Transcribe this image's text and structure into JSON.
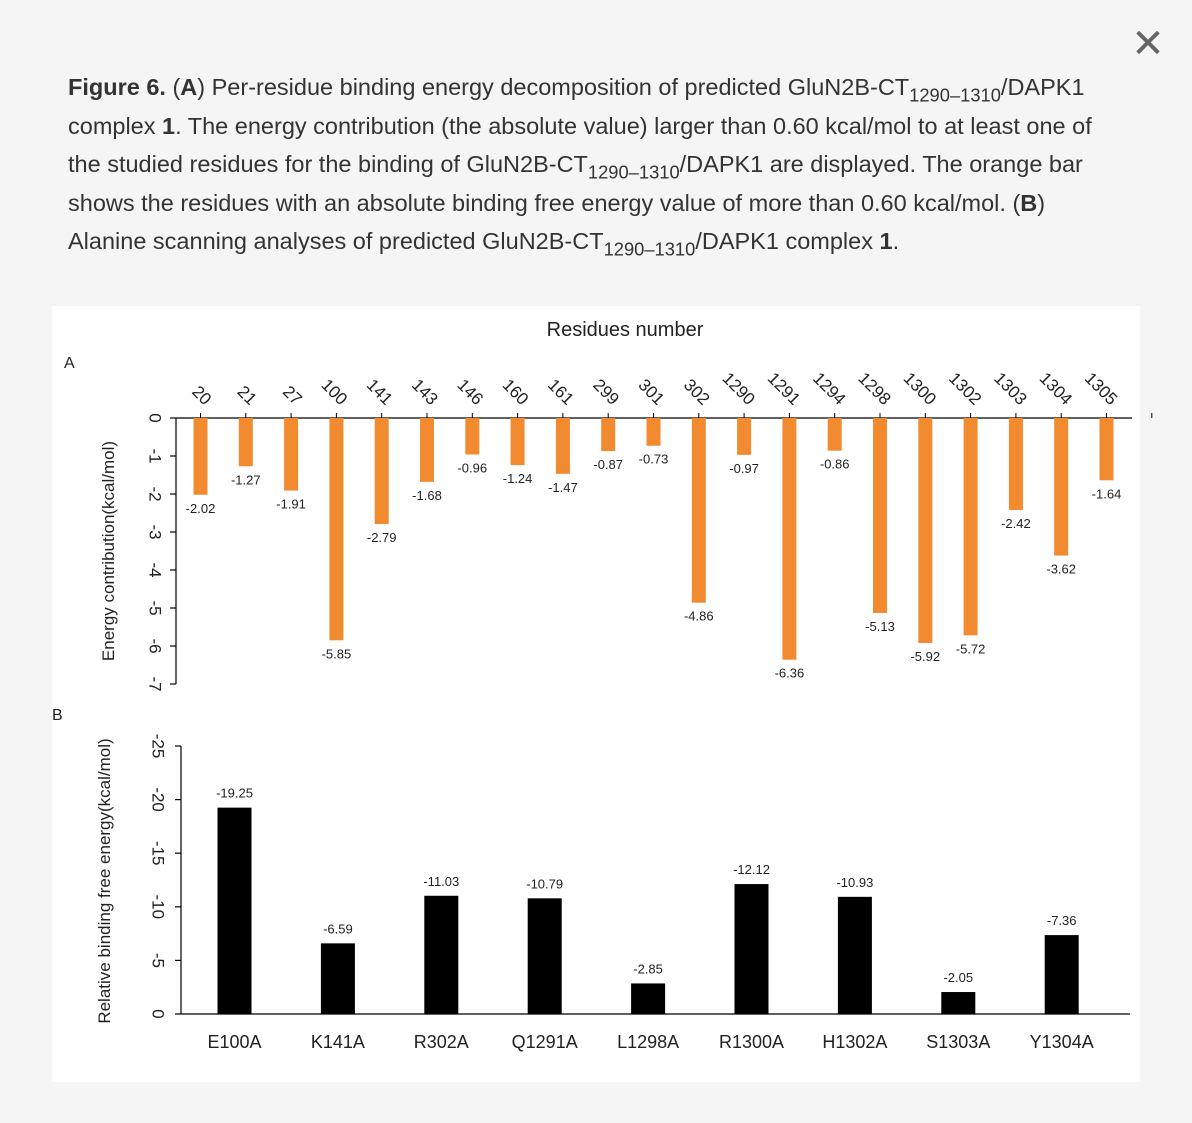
{
  "close": {
    "icon": "close-icon",
    "glyph": "✕"
  },
  "caption": {
    "fig": "Figure 6.",
    "s1": " (",
    "a": "A",
    "s2": ") Per-residue binding energy decomposition of predicted GluN2B-CT",
    "sub1": "1290–1310",
    "s3": "/DAPK1 complex ",
    "c1": "1",
    "s4": ". The energy contribution (the absolute value) larger than 0.60 kcal/mol to at least one of the studied residues for the binding of GluN2B-CT",
    "sub2": "1290–1310",
    "s5": "/DAPK1 are displayed. The orange bar shows the residues with an absolute binding free energy value of more than 0.60 kcal/mol. (",
    "b": "B",
    "s6": ") Alanine scanning analyses of predicted GluN2B-CT",
    "sub3": "1290–1310",
    "s7": "/DAPK1 complex ",
    "c2": "1",
    "s8": "."
  },
  "chart_data": [
    {
      "panel": "A",
      "type": "bar",
      "title": "Residues number",
      "xlabel": "",
      "ylabel": "Energy contribution(kcal/mol)",
      "ylim": [
        -7,
        0
      ],
      "yticks": [
        "0",
        "-1",
        "-2",
        "-3",
        "-4",
        "-5",
        "-6",
        "-7"
      ],
      "color": "#f28a30",
      "categories": [
        "20",
        "21",
        "27",
        "100",
        "141",
        "143",
        "146",
        "160",
        "161",
        "299",
        "301",
        "302",
        "1290",
        "1291",
        "1294",
        "1298",
        "1300",
        "1302",
        "1303",
        "1304",
        "1305"
      ],
      "values": [
        -2.02,
        -1.27,
        -1.91,
        -5.85,
        -2.79,
        -1.68,
        -0.96,
        -1.24,
        -1.47,
        -0.87,
        -0.73,
        -4.86,
        -0.97,
        -6.36,
        -0.86,
        -5.13,
        -5.92,
        -5.72,
        -2.42,
        -3.62,
        -1.64
      ],
      "labels": [
        "-2.02",
        "-1.27",
        "-1.91",
        "-5.85",
        "-2.79",
        "-1.68",
        "-0.96",
        "-1.24",
        "-1.47",
        "-0.87",
        "-0.73",
        "-4.86",
        "-0.97",
        "-6.36",
        "-0.86",
        "-5.13",
        "-5.92",
        "-5.72",
        "-2.42",
        "-3.62",
        "-1.64"
      ]
    },
    {
      "panel": "B",
      "type": "bar",
      "xlabel": "",
      "ylabel": "Relative binding free energy(kcal/mol)",
      "ylim": [
        -25,
        0
      ],
      "yticks": [
        "-25",
        "-20",
        "-15",
        "-10",
        "-5",
        "0"
      ],
      "color": "#000000",
      "categories": [
        "E100A",
        "K141A",
        "R302A",
        "Q1291A",
        "L1298A",
        "R1300A",
        "H1302A",
        "S1303A",
        "Y1304A"
      ],
      "values": [
        -19.25,
        -6.59,
        -11.03,
        -10.79,
        -2.85,
        -12.12,
        -10.93,
        -2.05,
        -7.36
      ],
      "labels": [
        "-19.25",
        "-6.59",
        "-11.03",
        "-10.79",
        "-2.85",
        "-12.12",
        "-10.93",
        "-2.05",
        "-7.36"
      ]
    }
  ]
}
